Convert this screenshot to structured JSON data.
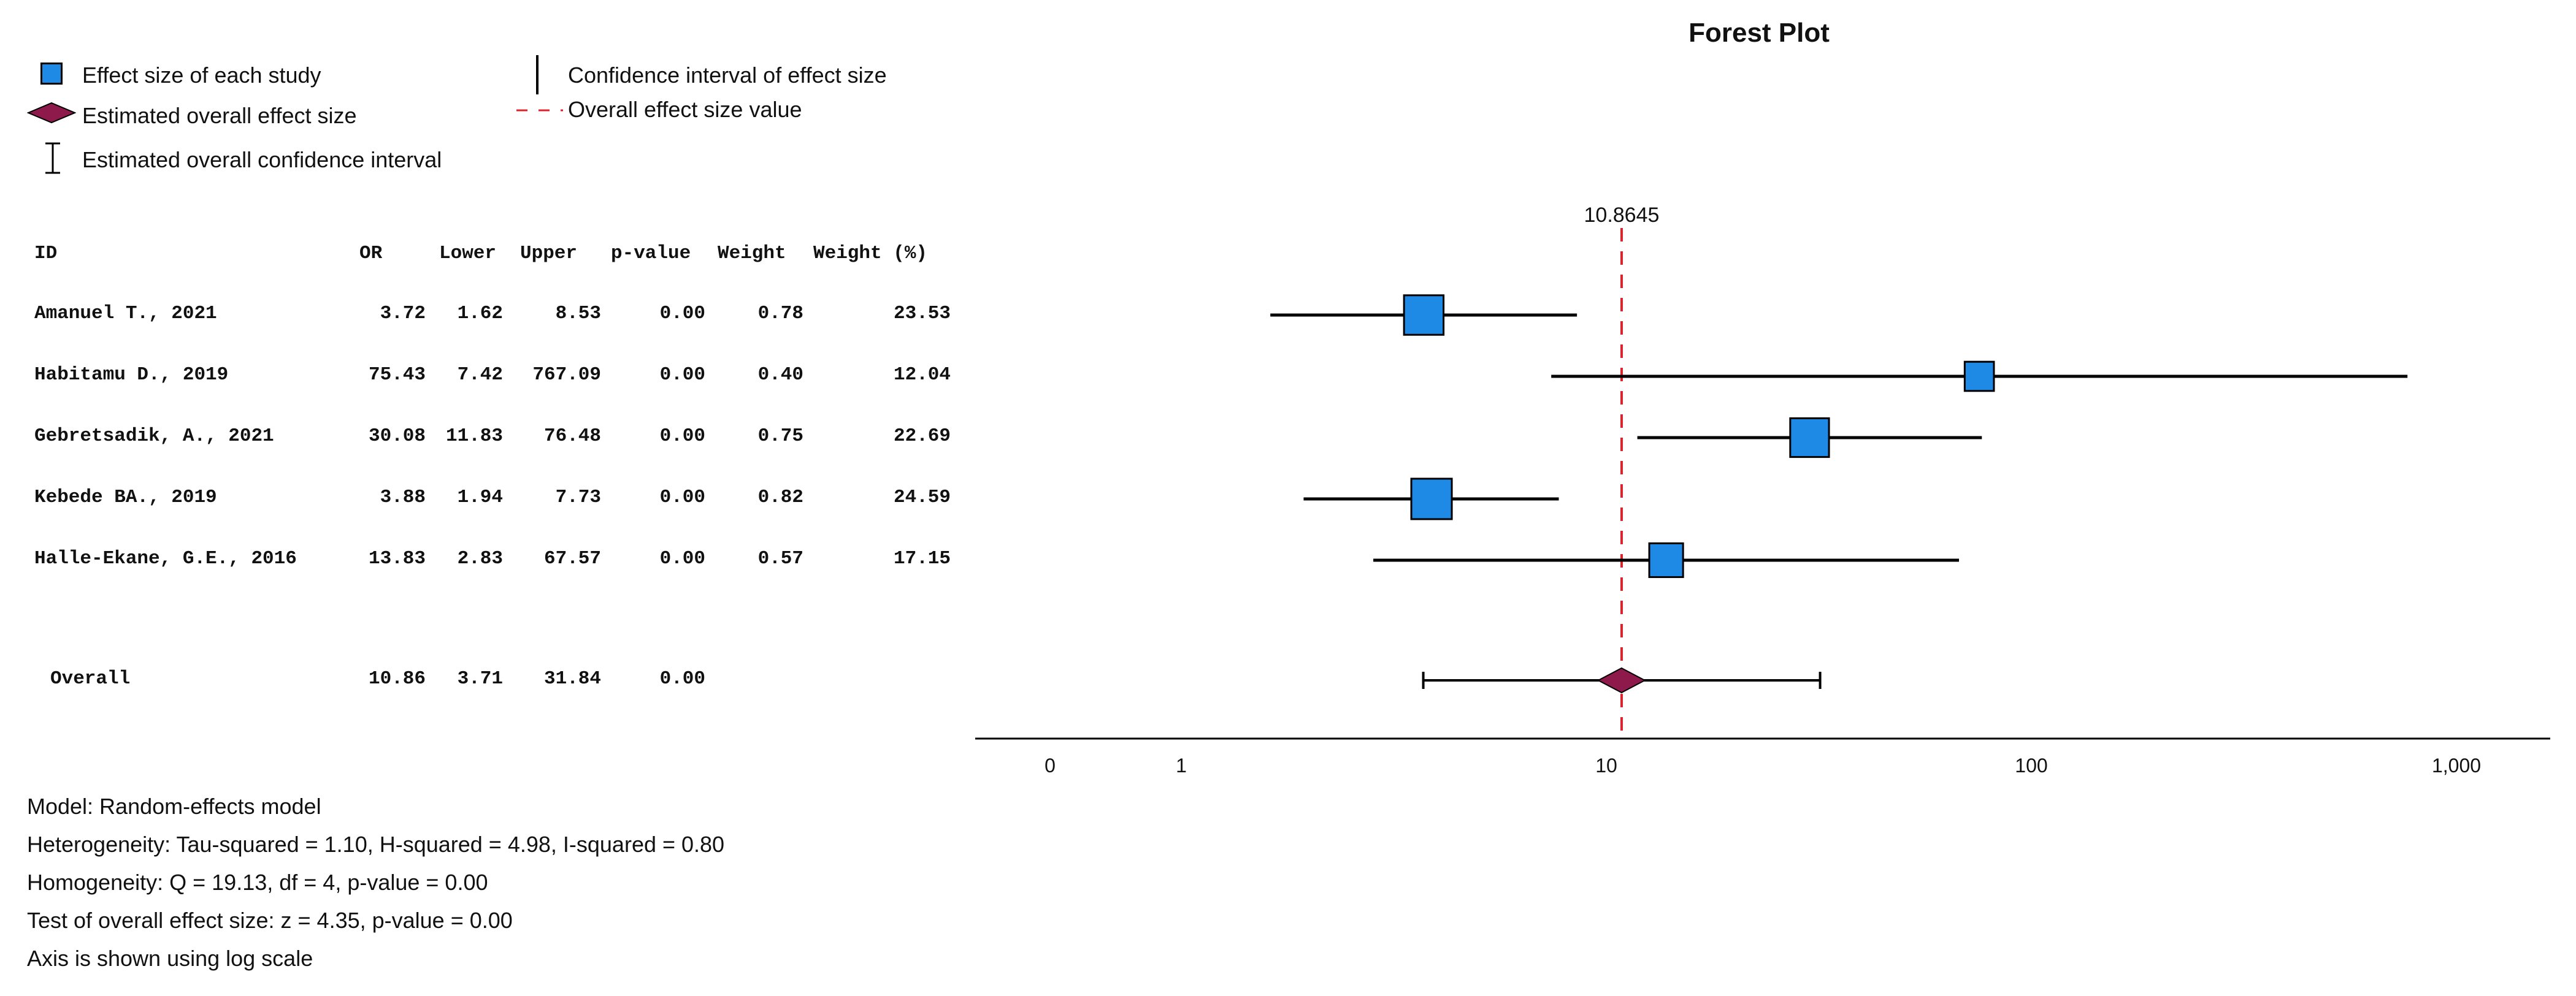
{
  "legend": {
    "study_effect": "Effect size of each study",
    "overall_effect": "Estimated overall effect size",
    "overall_ci": "Estimated overall confidence interval",
    "study_ci": "Confidence interval of effect size",
    "overall_line": "Overall effect size value"
  },
  "table": {
    "headers": [
      "ID",
      "OR",
      "Lower",
      "Upper",
      "p-value",
      "Weight",
      "Weight (%)"
    ],
    "rows": [
      {
        "id": "Amanuel T., 2021",
        "or": "3.72",
        "lower": "1.62",
        "upper": "8.53",
        "p": "0.00",
        "weight": "0.78",
        "weight_pct": "23.53"
      },
      {
        "id": "Habitamu D., 2019",
        "or": "75.43",
        "lower": "7.42",
        "upper": "767.09",
        "p": "0.00",
        "weight": "0.40",
        "weight_pct": "12.04"
      },
      {
        "id": "Gebretsadik, A., 2021",
        "or": "30.08",
        "lower": "11.83",
        "upper": "76.48",
        "p": "0.00",
        "weight": "0.75",
        "weight_pct": "22.69"
      },
      {
        "id": "Kebede BA., 2019",
        "or": "3.88",
        "lower": "1.94",
        "upper": "7.73",
        "p": "0.00",
        "weight": "0.82",
        "weight_pct": "24.59"
      },
      {
        "id": "Halle-Ekane, G.E., 2016",
        "or": "13.83",
        "lower": "2.83",
        "upper": "67.57",
        "p": "0.00",
        "weight": "0.57",
        "weight_pct": "17.15"
      }
    ],
    "overall": {
      "id": "Overall",
      "or": "10.86",
      "lower": "3.71",
      "upper": "31.84",
      "p": "0.00"
    }
  },
  "notes": [
    "Model: Random-effects model",
    "Heterogeneity: Tau-squared = 1.10, H-squared = 4.98, I-squared = 0.80",
    "Homogeneity: Q = 19.13, df = 4, p-value = 0.00",
    "Test of overall effect size: z = 4.35, p-value = 0.00",
    "Axis is shown using log scale"
  ],
  "colors": {
    "study_marker": "#1f8ae6",
    "overall_marker": "#8e1a4c",
    "reference_line": "#d9232d",
    "ink": "#000000"
  },
  "chart_data": {
    "type": "forest",
    "title": "Forest Plot",
    "scale": "log",
    "x_ticks": [
      0,
      1,
      10,
      100,
      1000
    ],
    "x_tick_labels": [
      "0",
      "1",
      "10",
      "100",
      "1,000"
    ],
    "reference_value": 10.8645,
    "reference_label": "10.8645",
    "studies": [
      {
        "name": "Amanuel T., 2021",
        "or": 3.72,
        "lower": 1.62,
        "upper": 8.53,
        "weight_pct": 23.53
      },
      {
        "name": "Habitamu D., 2019",
        "or": 75.43,
        "lower": 7.42,
        "upper": 767.09,
        "weight_pct": 12.04
      },
      {
        "name": "Gebretsadik, A., 2021",
        "or": 30.08,
        "lower": 11.83,
        "upper": 76.48,
        "weight_pct": 22.69
      },
      {
        "name": "Kebede BA., 2019",
        "or": 3.88,
        "lower": 1.94,
        "upper": 7.73,
        "weight_pct": 24.59
      },
      {
        "name": "Halle-Ekane, G.E., 2016",
        "or": 13.83,
        "lower": 2.83,
        "upper": 67.57,
        "weight_pct": 17.15
      }
    ],
    "overall": {
      "or": 10.86,
      "lower": 3.71,
      "upper": 31.84
    }
  }
}
